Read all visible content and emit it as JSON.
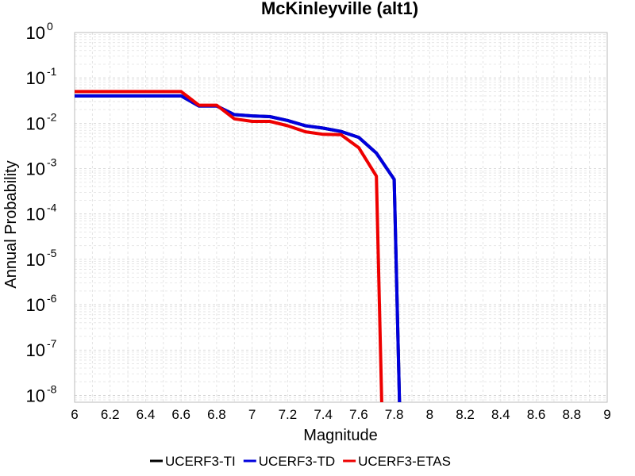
{
  "chart_data": {
    "type": "line",
    "title": "McKinleyville (alt1)",
    "xlabel": "Magnitude",
    "ylabel": "Annual Probability",
    "xlim": [
      6,
      9
    ],
    "ylim_log10": [
      -8.15,
      0
    ],
    "y_scale": "log",
    "grid": true,
    "legend_position": "bottom",
    "x_ticks": [
      "6",
      "6.2",
      "6.4",
      "6.6",
      "6.8",
      "7",
      "7.2",
      "7.4",
      "7.6",
      "7.8",
      "8",
      "8.2",
      "8.4",
      "8.6",
      "8.8",
      "9"
    ],
    "y_ticks": [
      {
        "base": "10",
        "exp": "0",
        "log": 0
      },
      {
        "base": "10",
        "exp": "-1",
        "log": -1
      },
      {
        "base": "10",
        "exp": "-2",
        "log": -2
      },
      {
        "base": "10",
        "exp": "-3",
        "log": -3
      },
      {
        "base": "10",
        "exp": "-4",
        "log": -4
      },
      {
        "base": "10",
        "exp": "-5",
        "log": -5
      },
      {
        "base": "10",
        "exp": "-6",
        "log": -6
      },
      {
        "base": "10",
        "exp": "-7",
        "log": -7
      },
      {
        "base": "10",
        "exp": "-8",
        "log": -8
      }
    ],
    "series": [
      {
        "name": "UCERF3-TI",
        "color": "#000000",
        "x": [
          6.0,
          6.6,
          6.7,
          6.8,
          6.9,
          7.0,
          7.1,
          7.2,
          7.3,
          7.4,
          7.5,
          7.6,
          7.7,
          7.8,
          7.83
        ],
        "y": [
          0.04,
          0.04,
          0.024,
          0.024,
          0.0155,
          0.0145,
          0.014,
          0.0115,
          0.0088,
          0.0078,
          0.0066,
          0.0049,
          0.0022,
          0.00058,
          1e-09
        ]
      },
      {
        "name": "UCERF3-TD",
        "color": "#0000dd",
        "x": [
          6.0,
          6.6,
          6.7,
          6.8,
          6.9,
          7.0,
          7.1,
          7.2,
          7.3,
          7.4,
          7.5,
          7.6,
          7.7,
          7.8,
          7.83
        ],
        "y": [
          0.04,
          0.04,
          0.024,
          0.024,
          0.0155,
          0.0145,
          0.014,
          0.0115,
          0.0088,
          0.0078,
          0.0066,
          0.0049,
          0.0022,
          0.00058,
          1e-09
        ]
      },
      {
        "name": "UCERF3-ETAS",
        "color": "#ee0000",
        "x": [
          6.0,
          6.6,
          6.7,
          6.8,
          6.9,
          7.0,
          7.1,
          7.2,
          7.3,
          7.4,
          7.5,
          7.6,
          7.7,
          7.73
        ],
        "y": [
          0.05,
          0.05,
          0.025,
          0.025,
          0.0125,
          0.011,
          0.011,
          0.0088,
          0.0065,
          0.0057,
          0.0056,
          0.0029,
          0.00068,
          1e-09
        ]
      }
    ]
  }
}
